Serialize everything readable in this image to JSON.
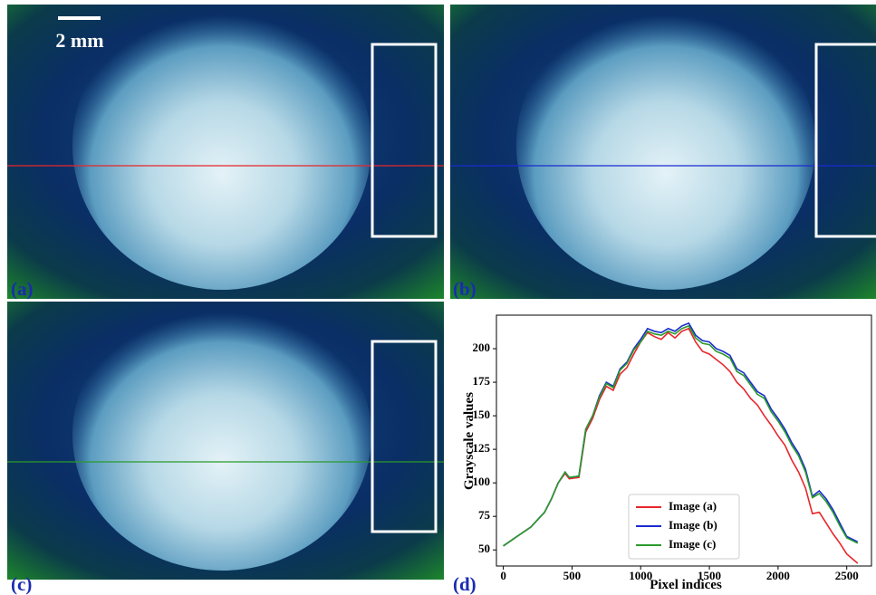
{
  "panels": [
    "(a)",
    "(b)",
    "(c)",
    "(d)"
  ],
  "scale_bar": "2 mm",
  "chart_data": {
    "type": "line",
    "xlabel": "Pixel indices",
    "ylabel": "Grayscale values",
    "x": [
      0,
      100,
      200,
      300,
      350,
      400,
      450,
      480,
      550,
      600,
      650,
      700,
      750,
      800,
      850,
      900,
      950,
      1000,
      1050,
      1100,
      1150,
      1200,
      1250,
      1300,
      1350,
      1400,
      1450,
      1500,
      1550,
      1600,
      1650,
      1700,
      1750,
      1800,
      1850,
      1900,
      1950,
      2000,
      2050,
      2100,
      2150,
      2200,
      2250,
      2300,
      2350,
      2400,
      2450,
      2500,
      2580
    ],
    "series": [
      {
        "name": "Image (a)",
        "color": "#e8262a",
        "values": [
          53,
          60,
          67,
          78,
          88,
          100,
          107,
          103,
          104,
          138,
          148,
          162,
          172,
          169,
          181,
          186,
          196,
          205,
          212,
          209,
          207,
          212,
          208,
          213,
          215,
          205,
          198,
          196,
          192,
          188,
          183,
          175,
          170,
          163,
          158,
          150,
          143,
          135,
          128,
          117,
          108,
          96,
          77,
          78,
          70,
          62,
          55,
          47,
          40
        ]
      },
      {
        "name": "Image (b)",
        "color": "#1a2bd0",
        "values": [
          53,
          60,
          67,
          78,
          88,
          100,
          108,
          104,
          105,
          140,
          150,
          165,
          175,
          172,
          185,
          190,
          200,
          207,
          215,
          213,
          212,
          215,
          213,
          217,
          219,
          210,
          206,
          205,
          200,
          198,
          195,
          185,
          182,
          175,
          168,
          165,
          155,
          148,
          140,
          130,
          122,
          110,
          90,
          94,
          88,
          80,
          70,
          60,
          56
        ]
      },
      {
        "name": "Image (c)",
        "color": "#2a9a2a",
        "values": [
          53,
          60,
          67,
          78,
          88,
          100,
          108,
          104,
          105,
          140,
          150,
          164,
          174,
          171,
          184,
          189,
          199,
          205,
          213,
          211,
          210,
          213,
          211,
          215,
          217,
          208,
          204,
          203,
          198,
          196,
          193,
          183,
          180,
          173,
          166,
          163,
          153,
          146,
          138,
          128,
          120,
          108,
          89,
          92,
          86,
          78,
          68,
          59,
          55
        ]
      }
    ],
    "xlim": [
      -50,
      2680
    ],
    "ylim": [
      38,
      225
    ],
    "xticks": [
      0,
      500,
      1000,
      1500,
      2000,
      2500
    ],
    "yticks": [
      50,
      75,
      100,
      125,
      150,
      175,
      200
    ],
    "legend": "lower center"
  }
}
